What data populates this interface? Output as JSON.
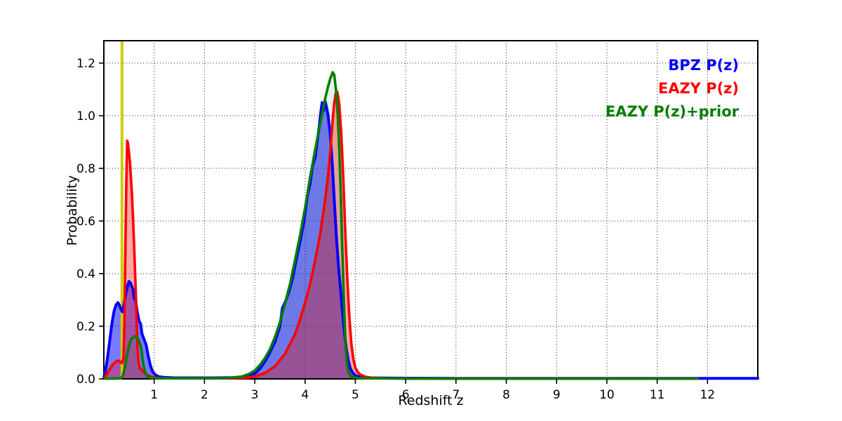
{
  "figure": {
    "background": "#ffffff",
    "xlabel": "Redshift z",
    "ylabel": "Probability"
  },
  "legend": {
    "position": "upper-right, text-only",
    "entries": [
      {
        "label": "BPZ P(z)",
        "color": "#0000ff"
      },
      {
        "label": "EAZY P(z)",
        "color": "#ff0000"
      },
      {
        "label": "EAZY P(z)+prior",
        "color": "#007d00"
      }
    ]
  },
  "chart_data": {
    "type": "area",
    "title": "",
    "xlabel": "Redshift z",
    "ylabel": "Probability",
    "xlim": [
      0,
      13.0
    ],
    "ylim": [
      0,
      1.285
    ],
    "x_ticks": [
      1,
      2,
      3,
      4,
      5,
      6,
      7,
      8,
      9,
      10,
      11,
      12
    ],
    "y_ticks": [
      "0.0",
      "0.2",
      "0.4",
      "0.6",
      "0.8",
      "1.0",
      "1.2"
    ],
    "grid": "dotted black on integer x and 0.2-step y",
    "vline": {
      "x": 0.36,
      "color": "#cccc00",
      "width": 4,
      "note": "vertical marker line spanning full plot height"
    },
    "series": [
      {
        "id": "bpz",
        "name": "BPZ P(z)",
        "color": "#0000ff",
        "fill_color": "rgba(0,0,255,0.52)",
        "line_width": 4,
        "points": [
          [
            0,
            0.005
          ],
          [
            0.04,
            0.04
          ],
          [
            0.08,
            0.09
          ],
          [
            0.12,
            0.15
          ],
          [
            0.16,
            0.21
          ],
          [
            0.2,
            0.255
          ],
          [
            0.24,
            0.28
          ],
          [
            0.28,
            0.29
          ],
          [
            0.31,
            0.28
          ],
          [
            0.34,
            0.265
          ],
          [
            0.37,
            0.255
          ],
          [
            0.4,
            0.285
          ],
          [
            0.44,
            0.325
          ],
          [
            0.48,
            0.36
          ],
          [
            0.5,
            0.37
          ],
          [
            0.53,
            0.365
          ],
          [
            0.56,
            0.35
          ],
          [
            0.58,
            0.34
          ],
          [
            0.6,
            0.305
          ],
          [
            0.63,
            0.3
          ],
          [
            0.66,
            0.26
          ],
          [
            0.7,
            0.22
          ],
          [
            0.73,
            0.21
          ],
          [
            0.76,
            0.17
          ],
          [
            0.8,
            0.15
          ],
          [
            0.84,
            0.13
          ],
          [
            0.88,
            0.09
          ],
          [
            0.92,
            0.055
          ],
          [
            0.96,
            0.032
          ],
          [
            1.0,
            0.02
          ],
          [
            1.05,
            0.012
          ],
          [
            1.1,
            0.008
          ],
          [
            1.2,
            0.006
          ],
          [
            1.4,
            0.004
          ],
          [
            1.8,
            0.004
          ],
          [
            2.2,
            0.004
          ],
          [
            2.6,
            0.005
          ],
          [
            2.85,
            0.009
          ],
          [
            3.0,
            0.02
          ],
          [
            3.1,
            0.038
          ],
          [
            3.2,
            0.065
          ],
          [
            3.3,
            0.1
          ],
          [
            3.4,
            0.14
          ],
          [
            3.5,
            0.2
          ],
          [
            3.55,
            0.27
          ],
          [
            3.6,
            0.29
          ],
          [
            3.68,
            0.33
          ],
          [
            3.75,
            0.38
          ],
          [
            3.82,
            0.45
          ],
          [
            3.9,
            0.52
          ],
          [
            3.98,
            0.6
          ],
          [
            4.05,
            0.7
          ],
          [
            4.1,
            0.74
          ],
          [
            4.15,
            0.81
          ],
          [
            4.2,
            0.84
          ],
          [
            4.24,
            0.9
          ],
          [
            4.28,
            0.955
          ],
          [
            4.31,
            1.01
          ],
          [
            4.34,
            1.05
          ],
          [
            4.37,
            1.02
          ],
          [
            4.4,
            1.055
          ],
          [
            4.43,
            1.03
          ],
          [
            4.46,
            1.0
          ],
          [
            4.5,
            0.93
          ],
          [
            4.54,
            0.82
          ],
          [
            4.58,
            0.68
          ],
          [
            4.62,
            0.55
          ],
          [
            4.66,
            0.44
          ],
          [
            4.7,
            0.35
          ],
          [
            4.74,
            0.26
          ],
          [
            4.78,
            0.18
          ],
          [
            4.82,
            0.115
          ],
          [
            4.86,
            0.07
          ],
          [
            4.9,
            0.04
          ],
          [
            4.95,
            0.022
          ],
          [
            5.0,
            0.013
          ],
          [
            5.1,
            0.007
          ],
          [
            5.3,
            0.004
          ],
          [
            5.8,
            0.003
          ],
          [
            7.0,
            0.002
          ],
          [
            9.0,
            0.002
          ],
          [
            11.0,
            0.002
          ],
          [
            13.0,
            0.002
          ]
        ]
      },
      {
        "id": "eazy",
        "name": "EAZY P(z)",
        "color": "#ff0000",
        "fill_color": "rgba(255,0,0,0.35)",
        "line_width": 3.6,
        "points": [
          [
            0,
            0.003
          ],
          [
            0.06,
            0.018
          ],
          [
            0.12,
            0.038
          ],
          [
            0.18,
            0.055
          ],
          [
            0.24,
            0.065
          ],
          [
            0.28,
            0.07
          ],
          [
            0.32,
            0.066
          ],
          [
            0.36,
            0.06
          ],
          [
            0.39,
            0.08
          ],
          [
            0.41,
            0.22
          ],
          [
            0.43,
            0.52
          ],
          [
            0.45,
            0.79
          ],
          [
            0.465,
            0.905
          ],
          [
            0.48,
            0.895
          ],
          [
            0.52,
            0.82
          ],
          [
            0.56,
            0.7
          ],
          [
            0.6,
            0.52
          ],
          [
            0.64,
            0.3
          ],
          [
            0.67,
            0.12
          ],
          [
            0.69,
            0.06
          ],
          [
            0.72,
            0.04
          ],
          [
            0.78,
            0.028
          ],
          [
            0.84,
            0.018
          ],
          [
            0.92,
            0.01
          ],
          [
            1.0,
            0.005
          ],
          [
            1.2,
            0.002
          ],
          [
            1.6,
            0.002
          ],
          [
            2.0,
            0.002
          ],
          [
            2.4,
            0.002
          ],
          [
            2.8,
            0.004
          ],
          [
            3.0,
            0.009
          ],
          [
            3.2,
            0.022
          ],
          [
            3.4,
            0.048
          ],
          [
            3.6,
            0.095
          ],
          [
            3.8,
            0.17
          ],
          [
            3.9,
            0.225
          ],
          [
            4.0,
            0.29
          ],
          [
            4.1,
            0.36
          ],
          [
            4.2,
            0.45
          ],
          [
            4.3,
            0.55
          ],
          [
            4.4,
            0.68
          ],
          [
            4.45,
            0.76
          ],
          [
            4.5,
            0.86
          ],
          [
            4.55,
            0.985
          ],
          [
            4.58,
            1.05
          ],
          [
            4.61,
            1.085
          ],
          [
            4.64,
            1.09
          ],
          [
            4.68,
            1.045
          ],
          [
            4.72,
            0.93
          ],
          [
            4.76,
            0.76
          ],
          [
            4.8,
            0.56
          ],
          [
            4.84,
            0.38
          ],
          [
            4.88,
            0.235
          ],
          [
            4.92,
            0.135
          ],
          [
            4.96,
            0.075
          ],
          [
            5.0,
            0.042
          ],
          [
            5.05,
            0.025
          ],
          [
            5.1,
            0.016
          ],
          [
            5.2,
            0.008
          ],
          [
            5.35,
            0.004
          ],
          [
            5.6,
            0.002
          ],
          [
            6.5,
            0.001
          ],
          [
            8.0,
            0.001
          ],
          [
            10.0,
            0.001
          ],
          [
            11.8,
            0.001
          ]
        ]
      },
      {
        "id": "eazy-prior",
        "name": "EAZY P(z)+prior",
        "color": "#007d00",
        "fill_color": "rgba(0,128,0,0.10)",
        "line_width": 3.6,
        "points": [
          [
            0,
            0.001
          ],
          [
            0.2,
            0.001
          ],
          [
            0.34,
            0.002
          ],
          [
            0.38,
            0.012
          ],
          [
            0.42,
            0.045
          ],
          [
            0.46,
            0.09
          ],
          [
            0.5,
            0.125
          ],
          [
            0.54,
            0.15
          ],
          [
            0.58,
            0.158
          ],
          [
            0.62,
            0.162
          ],
          [
            0.66,
            0.158
          ],
          [
            0.7,
            0.145
          ],
          [
            0.74,
            0.12
          ],
          [
            0.78,
            0.06
          ],
          [
            0.82,
            0.025
          ],
          [
            0.86,
            0.01
          ],
          [
            0.92,
            0.005
          ],
          [
            1.0,
            0.003
          ],
          [
            1.3,
            0.002
          ],
          [
            1.7,
            0.002
          ],
          [
            2.1,
            0.002
          ],
          [
            2.5,
            0.004
          ],
          [
            2.75,
            0.009
          ],
          [
            2.9,
            0.02
          ],
          [
            3.0,
            0.032
          ],
          [
            3.1,
            0.052
          ],
          [
            3.2,
            0.078
          ],
          [
            3.3,
            0.112
          ],
          [
            3.4,
            0.158
          ],
          [
            3.5,
            0.215
          ],
          [
            3.6,
            0.285
          ],
          [
            3.7,
            0.36
          ],
          [
            3.8,
            0.45
          ],
          [
            3.9,
            0.545
          ],
          [
            4.0,
            0.65
          ],
          [
            4.1,
            0.765
          ],
          [
            4.2,
            0.87
          ],
          [
            4.3,
            0.97
          ],
          [
            4.4,
            1.065
          ],
          [
            4.45,
            1.105
          ],
          [
            4.5,
            1.14
          ],
          [
            4.55,
            1.165
          ],
          [
            4.58,
            1.155
          ],
          [
            4.62,
            1.09
          ],
          [
            4.65,
            1.0
          ],
          [
            4.68,
            0.875
          ],
          [
            4.71,
            0.7
          ],
          [
            4.74,
            0.5
          ],
          [
            4.77,
            0.3
          ],
          [
            4.8,
            0.15
          ],
          [
            4.83,
            0.065
          ],
          [
            4.86,
            0.028
          ],
          [
            4.9,
            0.012
          ],
          [
            4.95,
            0.006
          ],
          [
            5.05,
            0.003
          ],
          [
            5.3,
            0.002
          ],
          [
            6.0,
            0.001
          ],
          [
            8.0,
            0.001
          ],
          [
            10.0,
            0.001
          ],
          [
            11.8,
            0.001
          ]
        ]
      }
    ]
  }
}
